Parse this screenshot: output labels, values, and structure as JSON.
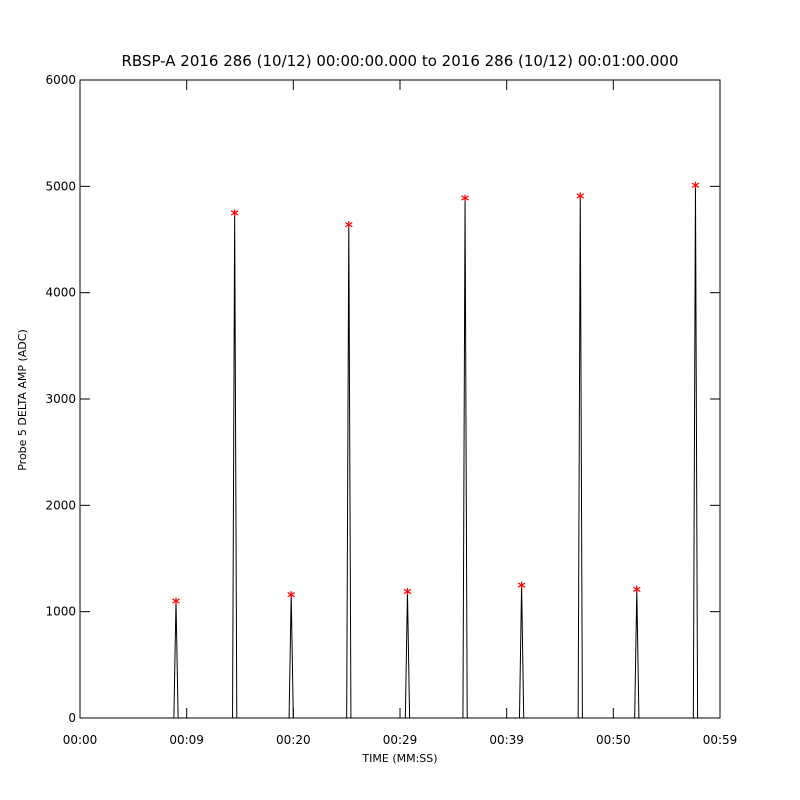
{
  "chart_data": {
    "type": "line",
    "title": "RBSP-A 2016 286 (10/12) 00:00:00.000 to 2016 286 (10/12) 00:01:00.000",
    "x_label": "TIME (MM:SS)",
    "y_label": "Probe 5 DELTA AMP (ADC)",
    "xlim": [
      0,
      60
    ],
    "ylim": [
      0,
      6000
    ],
    "xticks": [
      {
        "value": 0,
        "label": "00:00"
      },
      {
        "value": 10,
        "label": "00:09"
      },
      {
        "value": 20,
        "label": "00:20"
      },
      {
        "value": 30,
        "label": "00:29"
      },
      {
        "value": 40,
        "label": "00:39"
      },
      {
        "value": 50,
        "label": "00:50"
      },
      {
        "value": 60,
        "label": "00:59"
      }
    ],
    "yticks": [
      0,
      1000,
      2000,
      3000,
      4000,
      5000,
      6000
    ],
    "series": [
      {
        "color": "#000000",
        "style": "line",
        "x": [
          4,
          8.8,
          9.0,
          9.2,
          14.3,
          14.5,
          14.7,
          19.6,
          19.8,
          20.0,
          25.0,
          25.2,
          25.4,
          30.5,
          30.7,
          30.9,
          35.9,
          36.1,
          36.3,
          41.2,
          41.4,
          41.6,
          46.7,
          46.9,
          47.1,
          52.0,
          52.2,
          52.4,
          57.5,
          57.7,
          57.9
        ],
        "values": [
          0,
          0,
          1100,
          0,
          0,
          4750,
          0,
          0,
          1160,
          0,
          0,
          4640,
          0,
          0,
          1190,
          0,
          0,
          4890,
          0,
          0,
          1250,
          0,
          0,
          4910,
          0,
          0,
          1210,
          0,
          0,
          5010,
          0
        ]
      },
      {
        "color": "#ff0000",
        "style": "asterisk",
        "x": [
          9.0,
          14.5,
          19.8,
          25.2,
          30.7,
          36.1,
          41.4,
          46.9,
          52.2,
          57.7
        ],
        "values": [
          1100,
          4750,
          1160,
          4640,
          1190,
          4890,
          1250,
          4910,
          1210,
          5010
        ]
      }
    ]
  }
}
